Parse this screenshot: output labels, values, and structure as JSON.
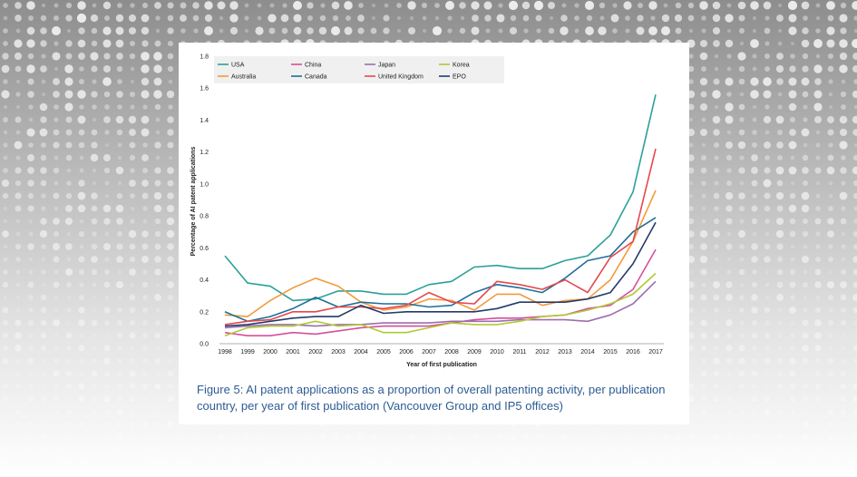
{
  "caption": "Figure 5: AI patent applications as a proportion of overall patenting activity, per publication country, per year of first publication (Vancouver Group and IP5 offices)",
  "chart_data": {
    "type": "line",
    "title": "",
    "xlabel": "Year of first publication",
    "ylabel": "Percentage of AI patent applications",
    "ylim": [
      0,
      1.8
    ],
    "yticks": [
      "0.0",
      "0.2",
      "0.4",
      "0.6",
      "0.8",
      "1.0",
      "1.2",
      "1.4",
      "1.6",
      "1.8"
    ],
    "grid": false,
    "legend_position": "top-left",
    "categories": [
      "1998",
      "1999",
      "2000",
      "2001",
      "2002",
      "2003",
      "2004",
      "2005",
      "2006",
      "2007",
      "2008",
      "2009",
      "2010",
      "2011",
      "2012",
      "2013",
      "2014",
      "2015",
      "2016",
      "2017"
    ],
    "series": [
      {
        "name": "USA",
        "color": "#2aa198",
        "values": [
          0.55,
          0.38,
          0.36,
          0.27,
          0.28,
          0.33,
          0.33,
          0.31,
          0.31,
          0.37,
          0.39,
          0.48,
          0.49,
          0.47,
          0.47,
          0.52,
          0.55,
          0.68,
          0.95,
          1.56
        ]
      },
      {
        "name": "China",
        "color": "#d4509a",
        "values": [
          0.07,
          0.05,
          0.05,
          0.07,
          0.06,
          0.08,
          0.1,
          0.11,
          0.11,
          0.11,
          0.13,
          0.15,
          0.16,
          0.16,
          0.17,
          0.18,
          0.22,
          0.24,
          0.34,
          0.59
        ]
      },
      {
        "name": "Japan",
        "color": "#9a6fae",
        "values": [
          0.1,
          0.11,
          0.12,
          0.12,
          0.11,
          0.12,
          0.12,
          0.13,
          0.13,
          0.13,
          0.14,
          0.14,
          0.14,
          0.15,
          0.15,
          0.15,
          0.14,
          0.18,
          0.25,
          0.39
        ]
      },
      {
        "name": "Korea",
        "color": "#b2c935",
        "values": [
          0.05,
          0.1,
          0.11,
          0.11,
          0.14,
          0.11,
          0.12,
          0.07,
          0.07,
          0.1,
          0.13,
          0.12,
          0.12,
          0.14,
          0.17,
          0.18,
          0.21,
          0.25,
          0.31,
          0.44
        ]
      },
      {
        "name": "Australia",
        "color": "#f39a3a",
        "values": [
          0.18,
          0.17,
          0.27,
          0.35,
          0.41,
          0.36,
          0.26,
          0.21,
          0.23,
          0.28,
          0.27,
          0.21,
          0.31,
          0.31,
          0.24,
          0.27,
          0.28,
          0.4,
          0.64,
          0.96
        ]
      },
      {
        "name": "Canada",
        "color": "#1f6f9a",
        "values": [
          0.2,
          0.14,
          0.17,
          0.22,
          0.29,
          0.23,
          0.26,
          0.25,
          0.25,
          0.23,
          0.24,
          0.32,
          0.37,
          0.35,
          0.32,
          0.41,
          0.52,
          0.55,
          0.7,
          0.79
        ]
      },
      {
        "name": "United Kingdom",
        "color": "#e5484d",
        "values": [
          0.12,
          0.14,
          0.15,
          0.2,
          0.2,
          0.23,
          0.23,
          0.22,
          0.24,
          0.32,
          0.26,
          0.25,
          0.39,
          0.37,
          0.34,
          0.4,
          0.32,
          0.54,
          0.64,
          1.22
        ]
      },
      {
        "name": "EPO",
        "color": "#243b6a",
        "values": [
          0.11,
          0.12,
          0.14,
          0.16,
          0.17,
          0.17,
          0.24,
          0.19,
          0.2,
          0.2,
          0.2,
          0.2,
          0.22,
          0.26,
          0.26,
          0.26,
          0.28,
          0.32,
          0.5,
          0.76
        ]
      }
    ]
  }
}
